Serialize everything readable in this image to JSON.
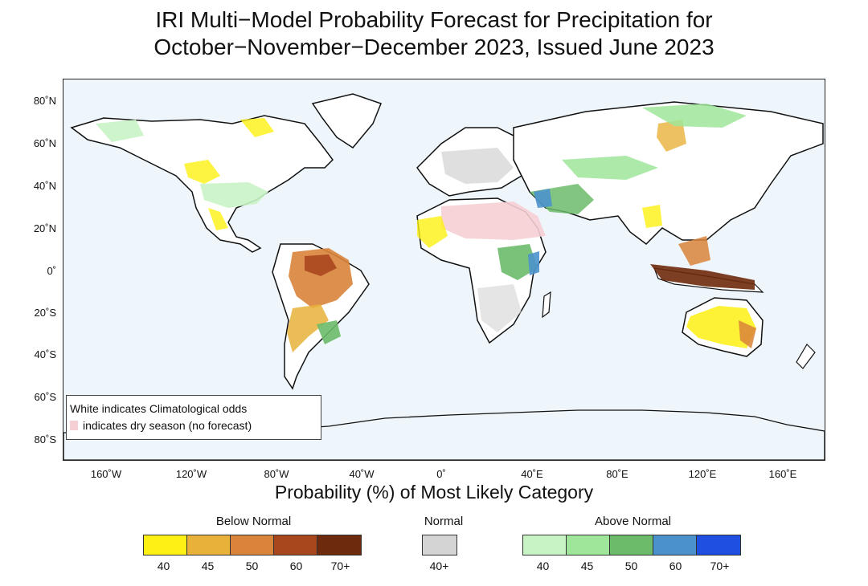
{
  "title": {
    "line1": "IRI Multi−Model Probability Forecast for Precipitation for",
    "line2": "October−November−December 2023, Issued June 2023"
  },
  "axes": {
    "lat_labels": [
      "80˚N",
      "60˚N",
      "40˚N",
      "20˚N",
      "0˚",
      "20˚S",
      "40˚S",
      "60˚S",
      "80˚S"
    ],
    "lon_labels": [
      "160˚W",
      "120˚W",
      "80˚W",
      "40˚W",
      "0˚",
      "40˚E",
      "80˚E",
      "120˚E",
      "160˚E"
    ]
  },
  "map_legend": {
    "line1": "White indicates Climatological odds",
    "line2": "indicates dry season (no forecast)",
    "dry_color": "#f6cfd4"
  },
  "colorbar": {
    "title": "Probability (%) of Most Likely Category",
    "below": {
      "label": "Below Normal",
      "ticks": [
        "40",
        "45",
        "50",
        "60",
        "70+"
      ],
      "colors": [
        "#fdf012",
        "#e8b23a",
        "#d9843a",
        "#a8471e",
        "#6e2a0c"
      ]
    },
    "normal": {
      "label": "Normal",
      "ticks": [
        "40+"
      ],
      "colors": [
        "#d4d4d4"
      ]
    },
    "above": {
      "label": "Above Normal",
      "ticks": [
        "40",
        "45",
        "50",
        "60",
        "70+"
      ],
      "colors": [
        "#c8f3c4",
        "#9fe69a",
        "#6cbb6a",
        "#4b92cc",
        "#1f4fe0"
      ]
    }
  }
}
